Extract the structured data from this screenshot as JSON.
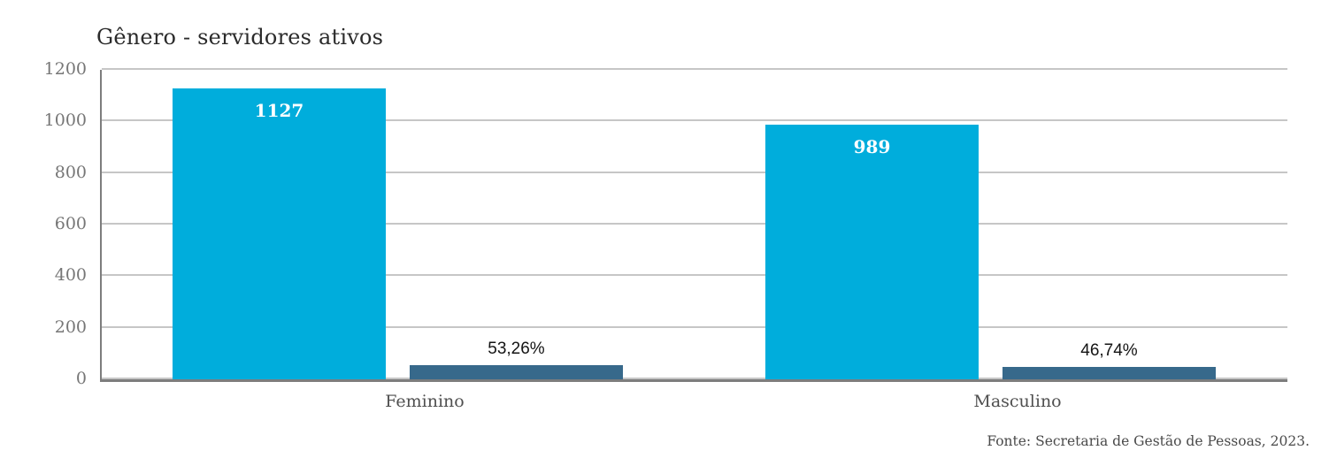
{
  "chart": {
    "title": "Gênero - servidores ativos",
    "source": "Fonte: Secretaria de Gestão de Pessoas, 2023.",
    "colors": {
      "count_bar": "#00ADDC",
      "percent_bar": "#37698B",
      "gridline": "#c6c6c6",
      "axis": "#7d7d7d",
      "tick_label": "#767676",
      "category_label": "#4f4f4f",
      "count_value_label": "#ffffff",
      "percent_value_label": "#141414",
      "title_text": "#2b2b2b"
    }
  },
  "chart_data": {
    "type": "bar",
    "title": "Gênero - servidores ativos",
    "categories": [
      "Feminino",
      "Masculino"
    ],
    "series": [
      {
        "name": "servidores-ativos-count",
        "values": [
          1127,
          989
        ],
        "labels": [
          "1127",
          "989"
        ],
        "color": "#00ADDC",
        "label_position": "inside-top",
        "label_color": "#ffffff"
      },
      {
        "name": "servidores-ativos-percent",
        "values": [
          53.26,
          46.74
        ],
        "labels": [
          "53,26%",
          "46,74%"
        ],
        "color": "#37698B",
        "label_position": "above",
        "label_color": "#141414"
      }
    ],
    "xlabel": "",
    "ylabel": "",
    "ylim": [
      0,
      1200
    ],
    "yticks": [
      0,
      200,
      400,
      600,
      800,
      1000,
      1200
    ],
    "grid": "horizontal",
    "legend": "none",
    "source": "Fonte: Secretaria de Gestão de Pessoas, 2023."
  }
}
